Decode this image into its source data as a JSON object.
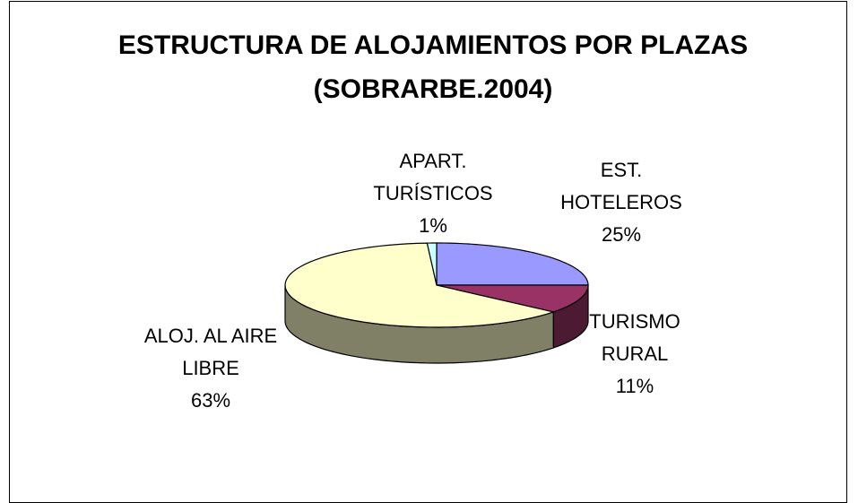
{
  "chart_data": {
    "type": "pie",
    "title": "ESTRUCTURA DE ALOJAMIENTOS POR PLAZAS",
    "subtitle": "(SOBRARBE.2004)",
    "categories": [
      "EST. HOTELEROS",
      "TURISMO RURAL",
      "ALOJ. AL AIRE LIBRE",
      "APART. TURÍSTICOS"
    ],
    "values": [
      25,
      11,
      63,
      1
    ],
    "value_labels": [
      "25%",
      "11%",
      "63%",
      "1%"
    ],
    "colors": [
      "#9999ff",
      "#993366",
      "#ffffcc",
      "#ccffff"
    ]
  }
}
